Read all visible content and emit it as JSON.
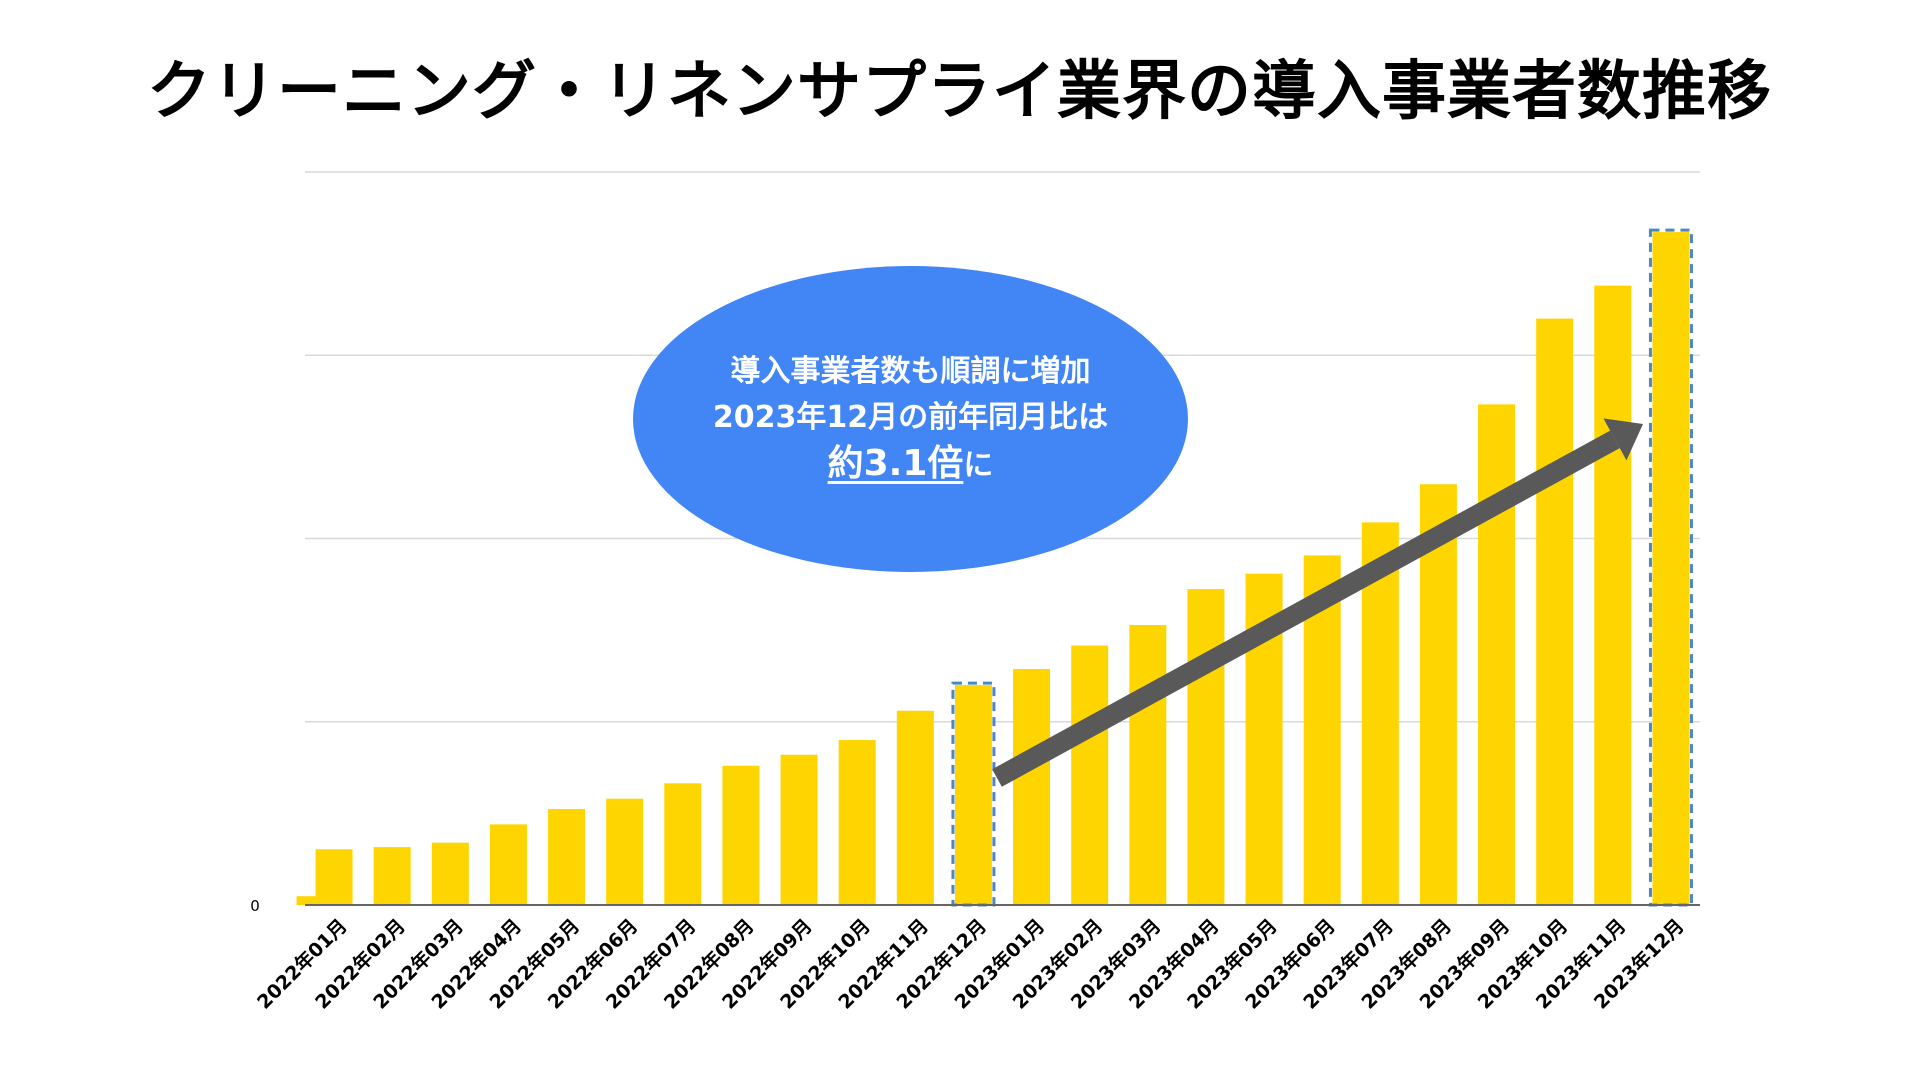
{
  "title": "クリーニング・リネンサプライ業界の導入事業者数推移",
  "callout": {
    "line1": "導入事業者数も順調に増加",
    "line2": "2023年12月の前年同月比は",
    "highlight": "約3.1倍",
    "suffix": "に"
  },
  "colors": {
    "bar": "#ffd500",
    "callout": "#4285f4",
    "arrow": "#595959",
    "highlight_border": "#4a86c8",
    "grid": "#d9d9d9"
  },
  "chart_data": {
    "type": "bar",
    "title": "クリーニング・リネンサプライ業界の導入事業者数推移",
    "xlabel": "",
    "ylabel": "",
    "y_tick_labels": [
      "0"
    ],
    "ylim": [
      0,
      100
    ],
    "grid": true,
    "legend": "none",
    "categories": [
      "2022年01月",
      "2022年02月",
      "2022年03月",
      "2022年04月",
      "2022年05月",
      "2022年06月",
      "2022年07月",
      "2022年08月",
      "2022年09月",
      "2022年10月",
      "2022年11月",
      "2022年12月",
      "2023年01月",
      "2023年02月",
      "2023年03月",
      "2023年04月",
      "2023年05月",
      "2023年06月",
      "2023年07月",
      "2023年08月",
      "2023年09月",
      "2023年10月",
      "2023年11月",
      "2023年12月"
    ],
    "values": [
      7.6,
      7.9,
      8.5,
      11.0,
      13.1,
      14.5,
      16.6,
      19.0,
      20.5,
      22.5,
      26.5,
      30.0,
      32.2,
      35.4,
      38.2,
      43.1,
      45.2,
      47.7,
      52.2,
      57.4,
      68.3,
      80.0,
      84.5,
      91.8
    ],
    "highlighted": [
      "2022年12月",
      "2023年12月"
    ],
    "annotation": "約3.1倍"
  }
}
